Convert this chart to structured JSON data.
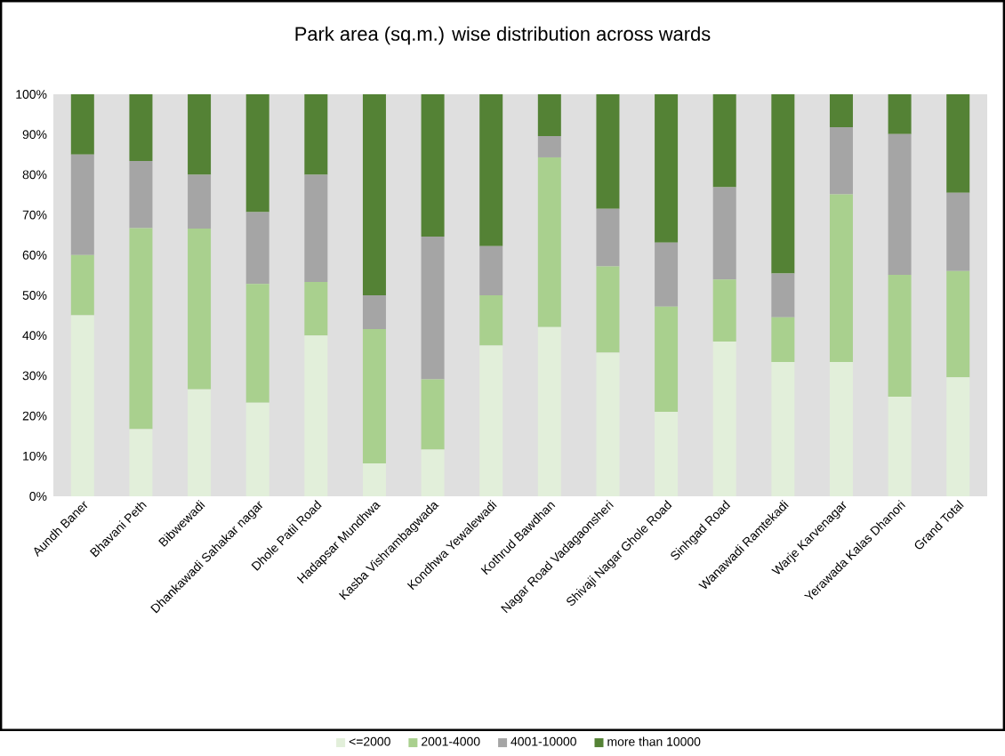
{
  "chart_data": {
    "type": "bar",
    "stacked": true,
    "title": "Park area (sq.m.) wise distribution across wards",
    "categories": [
      "Aundh Baner",
      "Bhavani Peth",
      "Bibwewadi",
      "Dhankawadi Sahakar nagar",
      "Dhole Patil Road",
      "Hadapsar Mundhwa",
      "Kasba Vishrambagwada",
      "Kondhwa Yewalewadi",
      "Kothrud Bawdhan",
      "Nagar Road Vadagaonsheri",
      "Shivaji Nagar Ghole Road",
      "Sinhgad Road",
      "Wanawadi Ramtekadi",
      "Warje Karvenagar",
      "Yerawada Kalas Dhanori",
      "Grand Total"
    ],
    "series": [
      {
        "name": "<=2000",
        "color": "#e2efda",
        "values": [
          45,
          16.7,
          26.6,
          23.3,
          40,
          8.2,
          11.6,
          37.5,
          42.1,
          35.7,
          21,
          38.5,
          33.4,
          33.4,
          24.8,
          29.6
        ]
      },
      {
        "name": "2001-4000",
        "color": "#a9d08e",
        "values": [
          15,
          50,
          40,
          29.5,
          13.3,
          33.4,
          17.5,
          12.5,
          42.2,
          21.5,
          26.2,
          15.4,
          11.1,
          41.7,
          30.3,
          26.4
        ]
      },
      {
        "name": "4001-10000",
        "color": "#a5a5a5",
        "values": [
          25,
          16.7,
          13.4,
          17.9,
          26.7,
          8.4,
          35.5,
          12.2,
          5.3,
          14.3,
          15.9,
          23,
          10.9,
          16.7,
          35,
          19.5
        ]
      },
      {
        "name": "more than 10000",
        "color": "#548235",
        "values": [
          15,
          16.6,
          20,
          29.3,
          20,
          50,
          35.4,
          37.8,
          10.4,
          28.5,
          36.9,
          23.1,
          44.6,
          8.2,
          9.9,
          24.5
        ]
      }
    ],
    "ylim": [
      0,
      100
    ],
    "yticks": [
      {
        "value": 0,
        "label": "0%"
      },
      {
        "value": 10,
        "label": "10%"
      },
      {
        "value": 20,
        "label": "20%"
      },
      {
        "value": 30,
        "label": "30%"
      },
      {
        "value": 40,
        "label": "40%"
      },
      {
        "value": 50,
        "label": "50%"
      },
      {
        "value": 60,
        "label": "60%"
      },
      {
        "value": 70,
        "label": "70%"
      },
      {
        "value": 80,
        "label": "80%"
      },
      {
        "value": 90,
        "label": "90%"
      },
      {
        "value": 100,
        "label": "100%"
      }
    ],
    "grid": false,
    "legend": "bottom"
  }
}
